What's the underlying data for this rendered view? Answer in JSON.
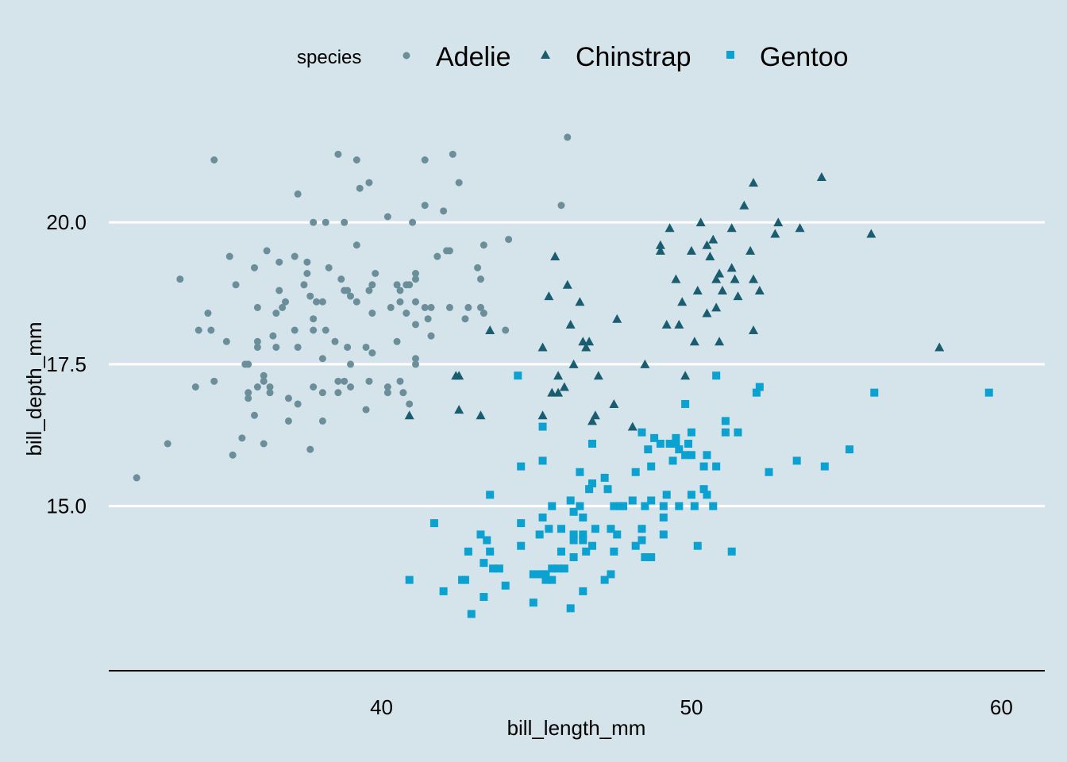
{
  "chart_data": {
    "type": "scatter",
    "title": "",
    "xlabel": "bill_length_mm",
    "ylabel": "bill_depth_mm",
    "xlim": [
      31.2,
      61.4
    ],
    "ylim": [
      12.1,
      22.1
    ],
    "xticks": [
      40,
      50,
      60
    ],
    "xtick_labels": [
      "40",
      "50",
      "60"
    ],
    "yticks": [
      15,
      17.5,
      20
    ],
    "ytick_labels": [
      "15.0",
      "17.5",
      "20.0"
    ],
    "grid": "horizontal major",
    "legend": {
      "title": "species",
      "placement": "top"
    },
    "series": [
      {
        "name": "Adelie",
        "marker": "circle",
        "color": "#6b8e9b",
        "points": [
          [
            32.1,
            15.5
          ],
          [
            33.1,
            16.1
          ],
          [
            33.5,
            19.0
          ],
          [
            34.0,
            17.1
          ],
          [
            34.1,
            18.1
          ],
          [
            34.4,
            18.4
          ],
          [
            34.5,
            18.1
          ],
          [
            34.6,
            21.1
          ],
          [
            34.6,
            17.2
          ],
          [
            35.0,
            17.9
          ],
          [
            35.1,
            19.4
          ],
          [
            35.2,
            15.9
          ],
          [
            35.3,
            18.9
          ],
          [
            35.5,
            16.2
          ],
          [
            35.6,
            17.5
          ],
          [
            35.7,
            17.5
          ],
          [
            35.7,
            16.9
          ],
          [
            35.7,
            17.0
          ],
          [
            35.9,
            19.2
          ],
          [
            35.9,
            16.6
          ],
          [
            36.0,
            18.5
          ],
          [
            36.0,
            17.8
          ],
          [
            36.0,
            17.9
          ],
          [
            36.0,
            17.1
          ],
          [
            36.2,
            17.2
          ],
          [
            36.2,
            16.1
          ],
          [
            36.2,
            17.3
          ],
          [
            36.3,
            19.5
          ],
          [
            36.4,
            17.0
          ],
          [
            36.4,
            17.1
          ],
          [
            36.5,
            18.0
          ],
          [
            36.6,
            18.4
          ],
          [
            36.6,
            17.8
          ],
          [
            36.7,
            19.3
          ],
          [
            36.7,
            18.8
          ],
          [
            36.8,
            18.5
          ],
          [
            36.9,
            18.6
          ],
          [
            37.0,
            16.9
          ],
          [
            37.0,
            16.5
          ],
          [
            37.2,
            18.1
          ],
          [
            37.2,
            19.4
          ],
          [
            37.3,
            20.5
          ],
          [
            37.3,
            17.8
          ],
          [
            37.3,
            16.8
          ],
          [
            37.5,
            18.9
          ],
          [
            37.6,
            19.1
          ],
          [
            37.6,
            19.3
          ],
          [
            37.7,
            18.7
          ],
          [
            37.7,
            16.0
          ],
          [
            37.8,
            20.0
          ],
          [
            37.8,
            18.3
          ],
          [
            37.8,
            18.1
          ],
          [
            37.8,
            17.1
          ],
          [
            37.9,
            18.6
          ],
          [
            38.1,
            18.6
          ],
          [
            38.1,
            17.0
          ],
          [
            38.1,
            16.5
          ],
          [
            38.1,
            17.6
          ],
          [
            38.2,
            20.0
          ],
          [
            38.2,
            18.1
          ],
          [
            38.3,
            19.2
          ],
          [
            38.5,
            17.9
          ],
          [
            38.6,
            21.2
          ],
          [
            38.6,
            17.2
          ],
          [
            38.6,
            17.0
          ],
          [
            38.7,
            19.0
          ],
          [
            38.8,
            17.2
          ],
          [
            38.8,
            20.0
          ],
          [
            38.8,
            18.8
          ],
          [
            38.9,
            17.8
          ],
          [
            38.9,
            18.8
          ],
          [
            39.0,
            17.1
          ],
          [
            39.0,
            17.5
          ],
          [
            39.0,
            18.7
          ],
          [
            39.2,
            19.6
          ],
          [
            39.2,
            18.6
          ],
          [
            39.2,
            21.1
          ],
          [
            39.3,
            20.6
          ],
          [
            39.5,
            16.7
          ],
          [
            39.5,
            17.8
          ],
          [
            39.6,
            20.7
          ],
          [
            39.6,
            18.8
          ],
          [
            39.6,
            17.2
          ],
          [
            39.7,
            18.4
          ],
          [
            39.7,
            17.7
          ],
          [
            39.7,
            18.9
          ],
          [
            39.8,
            19.1
          ],
          [
            40.2,
            20.1
          ],
          [
            40.2,
            17.1
          ],
          [
            40.2,
            17.0
          ],
          [
            40.3,
            18.5
          ],
          [
            40.5,
            17.9
          ],
          [
            40.5,
            18.9
          ],
          [
            40.6,
            18.6
          ],
          [
            40.6,
            18.8
          ],
          [
            40.6,
            17.2
          ],
          [
            40.7,
            17.0
          ],
          [
            40.8,
            18.4
          ],
          [
            40.8,
            18.9
          ],
          [
            40.9,
            16.8
          ],
          [
            40.9,
            18.9
          ],
          [
            41.0,
            20.0
          ],
          [
            41.1,
            19.1
          ],
          [
            41.1,
            18.2
          ],
          [
            41.1,
            17.6
          ],
          [
            41.1,
            17.5
          ],
          [
            41.1,
            19.0
          ],
          [
            41.1,
            18.6
          ],
          [
            41.4,
            18.5
          ],
          [
            41.4,
            20.3
          ],
          [
            41.4,
            21.1
          ],
          [
            41.5,
            18.3
          ],
          [
            41.6,
            18.0
          ],
          [
            41.6,
            18.5
          ],
          [
            41.8,
            19.4
          ],
          [
            42.0,
            20.2
          ],
          [
            42.1,
            19.5
          ],
          [
            42.2,
            18.5
          ],
          [
            42.2,
            19.5
          ],
          [
            42.3,
            21.2
          ],
          [
            42.5,
            20.7
          ],
          [
            42.7,
            18.3
          ],
          [
            42.8,
            18.5
          ],
          [
            43.1,
            19.2
          ],
          [
            43.2,
            18.5
          ],
          [
            43.2,
            19.0
          ],
          [
            43.3,
            18.4
          ],
          [
            43.3,
            19.6
          ],
          [
            44.0,
            18.1
          ],
          [
            44.1,
            19.7
          ],
          [
            45.8,
            20.3
          ],
          [
            46.0,
            21.5
          ]
        ]
      },
      {
        "name": "Chinstrap",
        "marker": "triangle",
        "color": "#1b5d70",
        "points": [
          [
            40.9,
            16.6
          ],
          [
            42.4,
            17.3
          ],
          [
            42.5,
            16.7
          ],
          [
            42.5,
            17.3
          ],
          [
            43.2,
            16.6
          ],
          [
            43.5,
            18.1
          ],
          [
            45.2,
            17.8
          ],
          [
            45.2,
            16.6
          ],
          [
            45.4,
            18.7
          ],
          [
            45.5,
            17.0
          ],
          [
            45.6,
            19.4
          ],
          [
            45.7,
            17.3
          ],
          [
            45.7,
            17.0
          ],
          [
            45.9,
            17.1
          ],
          [
            46.0,
            18.9
          ],
          [
            46.1,
            18.2
          ],
          [
            46.2,
            17.5
          ],
          [
            46.4,
            18.6
          ],
          [
            46.5,
            17.9
          ],
          [
            46.6,
            17.8
          ],
          [
            46.7,
            17.9
          ],
          [
            46.8,
            16.5
          ],
          [
            46.9,
            16.6
          ],
          [
            47.0,
            17.3
          ],
          [
            47.5,
            16.8
          ],
          [
            47.6,
            18.3
          ],
          [
            48.1,
            16.4
          ],
          [
            48.5,
            17.5
          ],
          [
            49.0,
            19.5
          ],
          [
            49.0,
            19.6
          ],
          [
            49.2,
            18.2
          ],
          [
            49.3,
            19.9
          ],
          [
            49.5,
            19.0
          ],
          [
            49.6,
            18.2
          ],
          [
            49.7,
            18.6
          ],
          [
            49.8,
            17.3
          ],
          [
            50.0,
            19.5
          ],
          [
            50.1,
            17.9
          ],
          [
            50.2,
            18.8
          ],
          [
            50.3,
            20.0
          ],
          [
            50.5,
            18.4
          ],
          [
            50.5,
            19.6
          ],
          [
            50.6,
            19.4
          ],
          [
            50.7,
            19.7
          ],
          [
            50.8,
            19.0
          ],
          [
            50.8,
            18.5
          ],
          [
            50.9,
            19.1
          ],
          [
            50.9,
            17.9
          ],
          [
            51.0,
            18.8
          ],
          [
            51.3,
            19.2
          ],
          [
            51.3,
            19.9
          ],
          [
            51.4,
            19.0
          ],
          [
            51.5,
            18.7
          ],
          [
            51.7,
            20.3
          ],
          [
            51.9,
            19.5
          ],
          [
            52.0,
            19.0
          ],
          [
            52.0,
            18.1
          ],
          [
            52.0,
            20.7
          ],
          [
            52.2,
            18.8
          ],
          [
            52.7,
            19.8
          ],
          [
            52.8,
            20.0
          ],
          [
            53.5,
            19.9
          ],
          [
            54.2,
            20.8
          ],
          [
            55.8,
            19.8
          ],
          [
            58.0,
            17.8
          ]
        ]
      },
      {
        "name": "Gentoo",
        "marker": "square",
        "color": "#0ba1d0",
        "points": [
          [
            40.9,
            13.7
          ],
          [
            41.7,
            14.7
          ],
          [
            42.0,
            13.5
          ],
          [
            42.6,
            13.7
          ],
          [
            42.7,
            13.7
          ],
          [
            42.8,
            14.2
          ],
          [
            42.9,
            13.1
          ],
          [
            43.2,
            14.5
          ],
          [
            43.3,
            14.0
          ],
          [
            43.3,
            13.4
          ],
          [
            43.4,
            14.4
          ],
          [
            43.5,
            14.2
          ],
          [
            43.5,
            15.2
          ],
          [
            43.6,
            13.9
          ],
          [
            43.8,
            13.9
          ],
          [
            44.0,
            13.6
          ],
          [
            44.4,
            17.3
          ],
          [
            44.5,
            15.7
          ],
          [
            44.5,
            14.7
          ],
          [
            44.5,
            14.3
          ],
          [
            44.9,
            13.8
          ],
          [
            44.9,
            13.3
          ],
          [
            45.1,
            14.5
          ],
          [
            45.1,
            13.8
          ],
          [
            45.2,
            16.4
          ],
          [
            45.2,
            15.8
          ],
          [
            45.2,
            14.8
          ],
          [
            45.2,
            13.8
          ],
          [
            45.3,
            13.7
          ],
          [
            45.3,
            13.8
          ],
          [
            45.4,
            14.6
          ],
          [
            45.5,
            13.7
          ],
          [
            45.5,
            13.9
          ],
          [
            45.5,
            15.0
          ],
          [
            45.7,
            13.9
          ],
          [
            45.8,
            14.6
          ],
          [
            45.8,
            14.2
          ],
          [
            45.9,
            13.9
          ],
          [
            46.1,
            13.2
          ],
          [
            46.1,
            15.1
          ],
          [
            46.2,
            14.5
          ],
          [
            46.2,
            14.4
          ],
          [
            46.2,
            14.9
          ],
          [
            46.2,
            14.1
          ],
          [
            46.4,
            15.6
          ],
          [
            46.4,
            15.0
          ],
          [
            46.5,
            13.5
          ],
          [
            46.5,
            14.5
          ],
          [
            46.5,
            14.4
          ],
          [
            46.5,
            14.8
          ],
          [
            46.6,
            14.2
          ],
          [
            46.7,
            15.3
          ],
          [
            46.8,
            16.1
          ],
          [
            46.8,
            15.4
          ],
          [
            46.8,
            14.3
          ],
          [
            46.9,
            14.6
          ],
          [
            47.2,
            15.5
          ],
          [
            47.2,
            13.7
          ],
          [
            47.3,
            15.3
          ],
          [
            47.4,
            14.6
          ],
          [
            47.4,
            13.8
          ],
          [
            47.5,
            14.2
          ],
          [
            47.5,
            15.0
          ],
          [
            47.6,
            14.5
          ],
          [
            47.7,
            15.0
          ],
          [
            47.8,
            15.0
          ],
          [
            48.1,
            15.1
          ],
          [
            48.2,
            14.3
          ],
          [
            48.2,
            15.6
          ],
          [
            48.4,
            14.6
          ],
          [
            48.4,
            16.3
          ],
          [
            48.4,
            14.4
          ],
          [
            48.5,
            14.1
          ],
          [
            48.5,
            15.0
          ],
          [
            48.6,
            16.0
          ],
          [
            48.7,
            14.1
          ],
          [
            48.7,
            15.1
          ],
          [
            48.7,
            15.7
          ],
          [
            48.8,
            16.2
          ],
          [
            49.0,
            16.1
          ],
          [
            49.1,
            14.5
          ],
          [
            49.1,
            15.0
          ],
          [
            49.1,
            14.8
          ],
          [
            49.2,
            15.2
          ],
          [
            49.3,
            16.1
          ],
          [
            49.4,
            15.8
          ],
          [
            49.5,
            16.2
          ],
          [
            49.5,
            16.1
          ],
          [
            49.6,
            15.0
          ],
          [
            49.6,
            16.0
          ],
          [
            49.8,
            15.9
          ],
          [
            49.8,
            16.8
          ],
          [
            49.9,
            16.1
          ],
          [
            50.0,
            15.2
          ],
          [
            50.0,
            15.9
          ],
          [
            50.0,
            16.3
          ],
          [
            50.1,
            15.0
          ],
          [
            50.2,
            14.3
          ],
          [
            50.4,
            15.3
          ],
          [
            50.4,
            15.7
          ],
          [
            50.5,
            15.9
          ],
          [
            50.5,
            15.2
          ],
          [
            50.7,
            15.0
          ],
          [
            50.8,
            15.7
          ],
          [
            50.8,
            17.3
          ],
          [
            51.1,
            16.3
          ],
          [
            51.1,
            16.5
          ],
          [
            51.3,
            14.2
          ],
          [
            51.5,
            16.3
          ],
          [
            52.1,
            17.0
          ],
          [
            52.2,
            17.1
          ],
          [
            52.5,
            15.6
          ],
          [
            53.4,
            15.8
          ],
          [
            54.3,
            15.7
          ],
          [
            55.1,
            16.0
          ],
          [
            55.9,
            17.0
          ],
          [
            59.6,
            17.0
          ]
        ]
      }
    ]
  }
}
